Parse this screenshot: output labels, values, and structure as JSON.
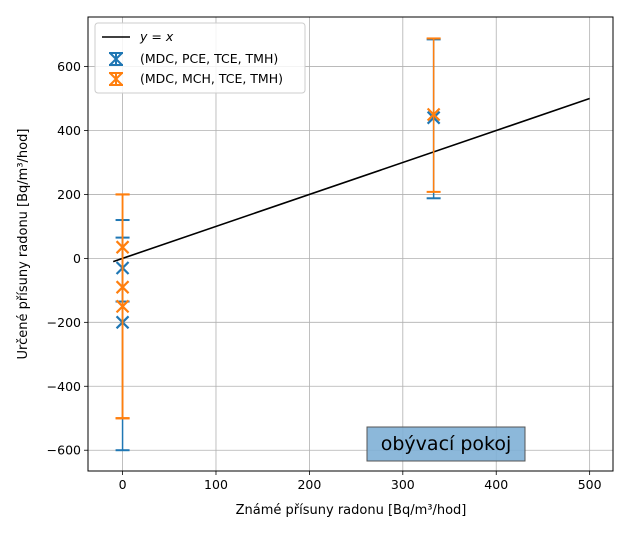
{
  "chart_data": {
    "type": "scatter",
    "xlabel": "Známé přísuny radonu [Bq/m³/hod]",
    "ylabel": "Určené přísuny radonu [Bq/m³/hod]",
    "xlim": [
      -37,
      525
    ],
    "ylim": [
      -665,
      755
    ],
    "x_ticks": [
      0,
      100,
      200,
      300,
      400,
      500
    ],
    "y_ticks": [
      -600,
      -400,
      -200,
      0,
      200,
      400,
      600
    ],
    "grid": true,
    "legend_position": "top-left",
    "reference_line": {
      "label": "y = x",
      "x": [
        -10,
        500
      ],
      "y": [
        -10,
        500
      ],
      "color": "#000000"
    },
    "series": [
      {
        "name": "(MDC, PCE, TCE, TMH)",
        "color": "#1f77b4",
        "marker": "x",
        "points": [
          {
            "x": 0,
            "y": -200,
            "lo": -600,
            "hi": 120
          },
          {
            "x": 0,
            "y": -30,
            "lo": -135,
            "hi": 65
          },
          {
            "x": 333,
            "y": 440,
            "lo": 188,
            "hi": 685
          }
        ]
      },
      {
        "name": "(MDC, MCH, TCE, TMH)",
        "color": "#ff7f0e",
        "marker": "x",
        "points": [
          {
            "x": 0,
            "y": 35,
            "lo": -500,
            "hi": 200
          },
          {
            "x": 0,
            "y": -90,
            "lo": -500,
            "hi": 200
          },
          {
            "x": 0,
            "y": -150,
            "lo": -500,
            "hi": 200
          },
          {
            "x": 333,
            "y": 450,
            "lo": 208,
            "hi": 688
          }
        ]
      }
    ],
    "annotation": {
      "text": "obývací pokoj",
      "color": "#7fb0d6"
    }
  }
}
